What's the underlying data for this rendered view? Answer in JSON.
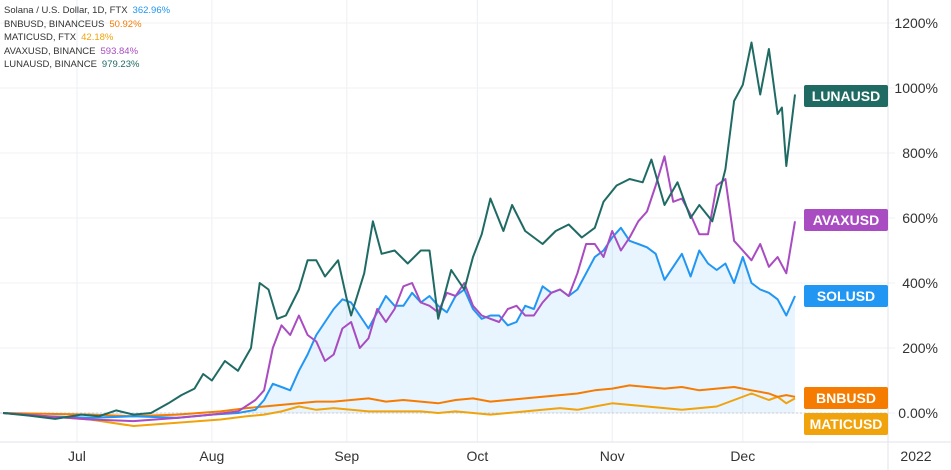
{
  "legend": [
    {
      "name": "Solana / U.S. Dollar, 1D, FTX",
      "value": "362.96%",
      "color": "#2196f3"
    },
    {
      "name": "BNBUSD, BINANCEUS",
      "value": "50.92%",
      "color": "#f57c00"
    },
    {
      "name": "MATICUSD, FTX",
      "value": "42.18%",
      "color": "#f0a30a"
    },
    {
      "name": "AVAXUSD, BINANCE",
      "value": "593.84%",
      "color": "#a94bc1"
    },
    {
      "name": "LUNAUSD, BINANCE",
      "value": "979.23%",
      "color": "#1f6b64"
    }
  ],
  "tags": [
    {
      "label": "LUNAUSD",
      "color": "#1f6b64"
    },
    {
      "label": "AVAXUSD",
      "color": "#a94bc1"
    },
    {
      "label": "SOLUSD",
      "color": "#2196f3"
    },
    {
      "label": "BNBUSD",
      "color": "#f57c00"
    },
    {
      "label": "MATICUSD",
      "color": "#f0a30a"
    }
  ],
  "chart_data": {
    "type": "line",
    "y_unit": "%",
    "ylim": [
      -60,
      1280
    ],
    "y_ticks": [
      "1200%",
      "1000%",
      "800%",
      "600%",
      "400%",
      "200%",
      "0.00%"
    ],
    "y_tick_values": [
      1200,
      1000,
      800,
      600,
      400,
      200,
      0
    ],
    "x_range": [
      0,
      182
    ],
    "x_ticks": [
      {
        "label": "Jul",
        "day": 17
      },
      {
        "label": "Aug",
        "day": 48
      },
      {
        "label": "Sep",
        "day": 79
      },
      {
        "label": "Oct",
        "day": 109
      },
      {
        "label": "Nov",
        "day": 140
      },
      {
        "label": "Dec",
        "day": 170
      }
    ],
    "x_end_label": "2022",
    "grid": "vertical",
    "legend_position": "top-left",
    "series": [
      {
        "name": "LUNAUSD",
        "color": "#1f6b64",
        "points": [
          [
            0,
            0
          ],
          [
            6,
            -8
          ],
          [
            12,
            -18
          ],
          [
            18,
            -5
          ],
          [
            22,
            -10
          ],
          [
            26,
            8
          ],
          [
            30,
            -5
          ],
          [
            34,
            0
          ],
          [
            38,
            30
          ],
          [
            41,
            55
          ],
          [
            44,
            75
          ],
          [
            46,
            120
          ],
          [
            48,
            100
          ],
          [
            51,
            160
          ],
          [
            54,
            130
          ],
          [
            57,
            200
          ],
          [
            59,
            400
          ],
          [
            61,
            380
          ],
          [
            63,
            290
          ],
          [
            65,
            300
          ],
          [
            68,
            380
          ],
          [
            70,
            470
          ],
          [
            72,
            470
          ],
          [
            74,
            420
          ],
          [
            77,
            470
          ],
          [
            79,
            350
          ],
          [
            80,
            300
          ],
          [
            83,
            430
          ],
          [
            85,
            590
          ],
          [
            87,
            490
          ],
          [
            90,
            500
          ],
          [
            93,
            460
          ],
          [
            96,
            500
          ],
          [
            98,
            500
          ],
          [
            100,
            290
          ],
          [
            103,
            440
          ],
          [
            106,
            380
          ],
          [
            108,
            480
          ],
          [
            110,
            550
          ],
          [
            112,
            660
          ],
          [
            115,
            560
          ],
          [
            117,
            640
          ],
          [
            120,
            560
          ],
          [
            124,
            520
          ],
          [
            127,
            560
          ],
          [
            130,
            580
          ],
          [
            133,
            540
          ],
          [
            136,
            570
          ],
          [
            138,
            650
          ],
          [
            141,
            700
          ],
          [
            144,
            720
          ],
          [
            147,
            710
          ],
          [
            149,
            780
          ],
          [
            152,
            640
          ],
          [
            155,
            710
          ],
          [
            158,
            600
          ],
          [
            160,
            640
          ],
          [
            163,
            590
          ],
          [
            166,
            750
          ],
          [
            168,
            960
          ],
          [
            170,
            1010
          ],
          [
            172,
            1140
          ],
          [
            174,
            980
          ],
          [
            176,
            1120
          ],
          [
            178,
            920
          ],
          [
            179,
            940
          ],
          [
            180,
            760
          ],
          [
            182,
            980
          ]
        ]
      },
      {
        "name": "AVAXUSD",
        "color": "#a94bc1",
        "points": [
          [
            0,
            0
          ],
          [
            10,
            -10
          ],
          [
            20,
            -20
          ],
          [
            30,
            -25
          ],
          [
            40,
            -15
          ],
          [
            48,
            -5
          ],
          [
            54,
            5
          ],
          [
            58,
            40
          ],
          [
            60,
            70
          ],
          [
            62,
            200
          ],
          [
            64,
            270
          ],
          [
            66,
            240
          ],
          [
            68,
            300
          ],
          [
            70,
            240
          ],
          [
            72,
            220
          ],
          [
            74,
            160
          ],
          [
            76,
            180
          ],
          [
            78,
            260
          ],
          [
            80,
            280
          ],
          [
            82,
            200
          ],
          [
            84,
            230
          ],
          [
            86,
            320
          ],
          [
            88,
            280
          ],
          [
            90,
            320
          ],
          [
            92,
            390
          ],
          [
            94,
            400
          ],
          [
            96,
            340
          ],
          [
            98,
            330
          ],
          [
            100,
            310
          ],
          [
            102,
            370
          ],
          [
            104,
            360
          ],
          [
            106,
            400
          ],
          [
            108,
            330
          ],
          [
            110,
            300
          ],
          [
            112,
            290
          ],
          [
            114,
            280
          ],
          [
            116,
            320
          ],
          [
            118,
            330
          ],
          [
            120,
            300
          ],
          [
            122,
            300
          ],
          [
            124,
            340
          ],
          [
            126,
            370
          ],
          [
            128,
            380
          ],
          [
            130,
            360
          ],
          [
            132,
            430
          ],
          [
            134,
            520
          ],
          [
            136,
            520
          ],
          [
            138,
            480
          ],
          [
            140,
            560
          ],
          [
            142,
            500
          ],
          [
            144,
            540
          ],
          [
            146,
            590
          ],
          [
            148,
            620
          ],
          [
            150,
            700
          ],
          [
            152,
            790
          ],
          [
            154,
            650
          ],
          [
            156,
            660
          ],
          [
            158,
            610
          ],
          [
            160,
            550
          ],
          [
            162,
            550
          ],
          [
            164,
            700
          ],
          [
            166,
            720
          ],
          [
            168,
            530
          ],
          [
            170,
            500
          ],
          [
            172,
            470
          ],
          [
            174,
            520
          ],
          [
            176,
            450
          ],
          [
            178,
            480
          ],
          [
            180,
            430
          ],
          [
            182,
            590
          ]
        ]
      },
      {
        "name": "SOLUSD",
        "color": "#2196f3",
        "points": [
          [
            0,
            0
          ],
          [
            10,
            -10
          ],
          [
            20,
            -15
          ],
          [
            30,
            -10
          ],
          [
            40,
            -15
          ],
          [
            48,
            -5
          ],
          [
            54,
            0
          ],
          [
            58,
            10
          ],
          [
            60,
            40
          ],
          [
            62,
            90
          ],
          [
            64,
            80
          ],
          [
            66,
            70
          ],
          [
            68,
            130
          ],
          [
            70,
            180
          ],
          [
            72,
            240
          ],
          [
            74,
            280
          ],
          [
            76,
            320
          ],
          [
            78,
            350
          ],
          [
            80,
            340
          ],
          [
            82,
            300
          ],
          [
            84,
            260
          ],
          [
            86,
            310
          ],
          [
            88,
            360
          ],
          [
            90,
            330
          ],
          [
            92,
            330
          ],
          [
            94,
            370
          ],
          [
            96,
            340
          ],
          [
            98,
            360
          ],
          [
            100,
            330
          ],
          [
            102,
            310
          ],
          [
            104,
            360
          ],
          [
            106,
            380
          ],
          [
            108,
            320
          ],
          [
            110,
            290
          ],
          [
            112,
            300
          ],
          [
            114,
            300
          ],
          [
            116,
            270
          ],
          [
            118,
            280
          ],
          [
            120,
            330
          ],
          [
            122,
            320
          ],
          [
            124,
            390
          ],
          [
            126,
            370
          ],
          [
            128,
            380
          ],
          [
            130,
            360
          ],
          [
            132,
            380
          ],
          [
            134,
            430
          ],
          [
            136,
            480
          ],
          [
            138,
            500
          ],
          [
            140,
            540
          ],
          [
            142,
            570
          ],
          [
            144,
            530
          ],
          [
            146,
            520
          ],
          [
            148,
            510
          ],
          [
            150,
            490
          ],
          [
            152,
            410
          ],
          [
            154,
            450
          ],
          [
            156,
            490
          ],
          [
            158,
            420
          ],
          [
            160,
            500
          ],
          [
            162,
            460
          ],
          [
            164,
            440
          ],
          [
            166,
            460
          ],
          [
            168,
            400
          ],
          [
            170,
            480
          ],
          [
            172,
            400
          ],
          [
            174,
            380
          ],
          [
            176,
            370
          ],
          [
            178,
            350
          ],
          [
            180,
            300
          ],
          [
            182,
            360
          ]
        ]
      },
      {
        "name": "BNBUSD",
        "color": "#f57c00",
        "points": [
          [
            0,
            0
          ],
          [
            20,
            -5
          ],
          [
            30,
            -10
          ],
          [
            40,
            -5
          ],
          [
            50,
            5
          ],
          [
            56,
            15
          ],
          [
            60,
            20
          ],
          [
            64,
            25
          ],
          [
            68,
            30
          ],
          [
            72,
            35
          ],
          [
            76,
            35
          ],
          [
            80,
            40
          ],
          [
            84,
            45
          ],
          [
            88,
            35
          ],
          [
            92,
            40
          ],
          [
            96,
            35
          ],
          [
            100,
            30
          ],
          [
            104,
            40
          ],
          [
            108,
            45
          ],
          [
            112,
            35
          ],
          [
            116,
            40
          ],
          [
            120,
            45
          ],
          [
            124,
            50
          ],
          [
            128,
            55
          ],
          [
            132,
            60
          ],
          [
            136,
            70
          ],
          [
            140,
            75
          ],
          [
            144,
            85
          ],
          [
            148,
            80
          ],
          [
            152,
            75
          ],
          [
            156,
            80
          ],
          [
            160,
            70
          ],
          [
            164,
            75
          ],
          [
            168,
            80
          ],
          [
            172,
            70
          ],
          [
            176,
            60
          ],
          [
            178,
            50
          ],
          [
            180,
            55
          ],
          [
            182,
            50
          ]
        ]
      },
      {
        "name": "MATICUSD",
        "color": "#f0a30a",
        "points": [
          [
            0,
            0
          ],
          [
            10,
            -10
          ],
          [
            20,
            -20
          ],
          [
            30,
            -40
          ],
          [
            40,
            -30
          ],
          [
            50,
            -20
          ],
          [
            56,
            -10
          ],
          [
            60,
            -5
          ],
          [
            64,
            5
          ],
          [
            68,
            20
          ],
          [
            72,
            10
          ],
          [
            76,
            15
          ],
          [
            80,
            10
          ],
          [
            84,
            5
          ],
          [
            88,
            5
          ],
          [
            92,
            5
          ],
          [
            96,
            5
          ],
          [
            100,
            0
          ],
          [
            104,
            5
          ],
          [
            108,
            0
          ],
          [
            112,
            -5
          ],
          [
            116,
            0
          ],
          [
            120,
            5
          ],
          [
            124,
            10
          ],
          [
            128,
            15
          ],
          [
            132,
            10
          ],
          [
            136,
            20
          ],
          [
            140,
            30
          ],
          [
            144,
            25
          ],
          [
            148,
            20
          ],
          [
            152,
            15
          ],
          [
            156,
            10
          ],
          [
            160,
            15
          ],
          [
            164,
            20
          ],
          [
            168,
            40
          ],
          [
            172,
            60
          ],
          [
            176,
            40
          ],
          [
            178,
            50
          ],
          [
            180,
            30
          ],
          [
            182,
            45
          ]
        ]
      }
    ]
  }
}
